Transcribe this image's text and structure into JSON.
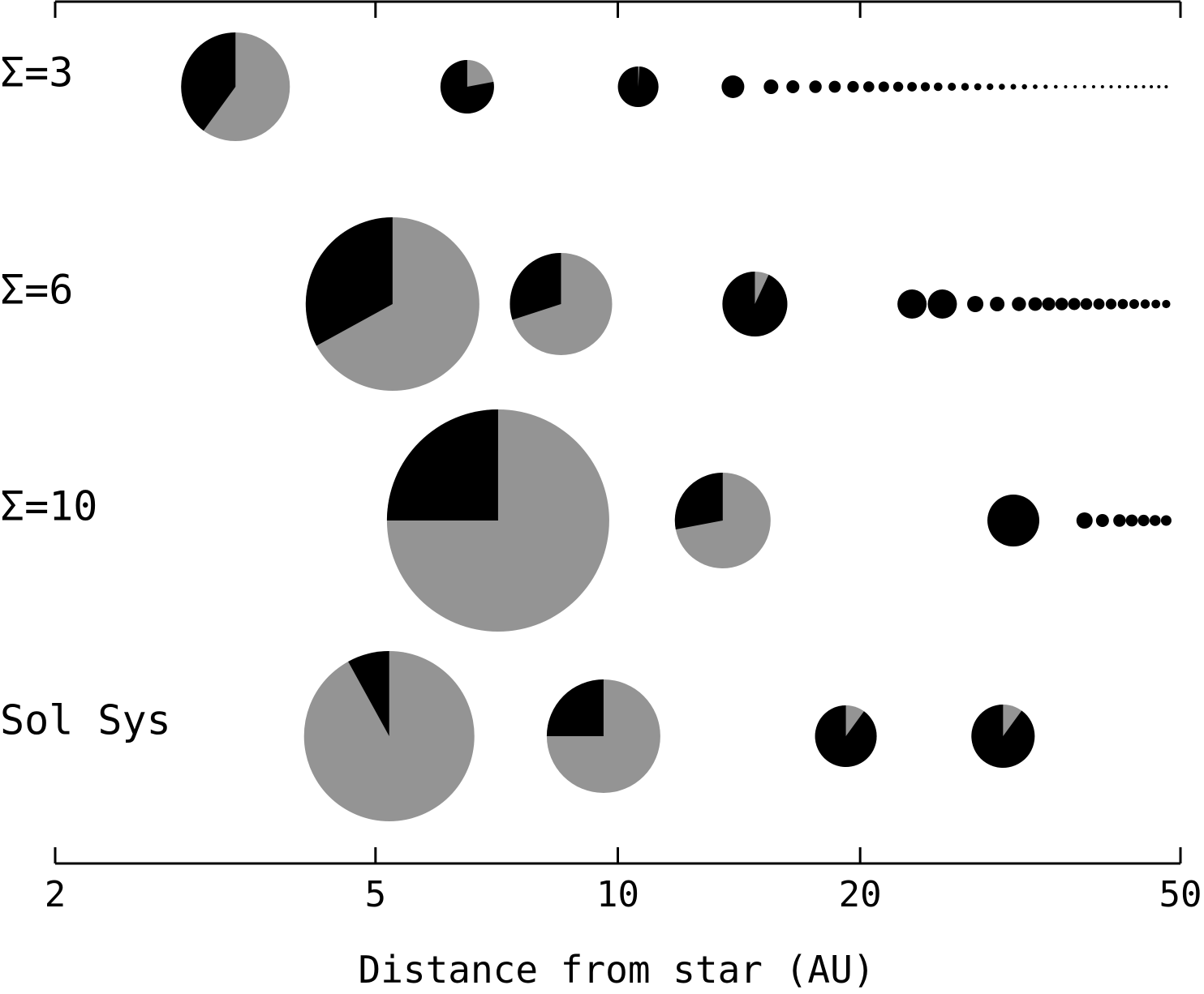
{
  "chart_data": {
    "type": "scatter",
    "xlabel": "Distance from star (AU)",
    "xscale": "log",
    "xlim": [
      2,
      50
    ],
    "x_ticks": [
      2,
      5,
      10,
      20,
      50
    ],
    "x_tick_labels": [
      "2",
      "5",
      "10",
      "20",
      "50"
    ],
    "grid": false,
    "colors": {
      "gas": "#949494",
      "solid": "#000000"
    },
    "rows": [
      {
        "label": "Σ=3",
        "bodies": [
          {
            "a": 3.35,
            "gas_fraction": 0.6
          },
          {
            "a": 6.5,
            "gas_fraction": 0.22
          },
          {
            "a": 10.6,
            "gas_fraction": 0.01
          },
          {
            "a": 13.9,
            "gas_fraction": 0.0
          },
          {
            "a": 15.5,
            "gas_fraction": 0.0
          },
          {
            "a": 16.5,
            "gas_fraction": 0.0
          },
          {
            "a": 17.6,
            "gas_fraction": 0.0
          },
          {
            "a": 18.6,
            "gas_fraction": 0.0
          },
          {
            "a": 19.6,
            "gas_fraction": 0.0
          },
          {
            "a": 20.5,
            "gas_fraction": 0.0
          },
          {
            "a": 21.4,
            "gas_fraction": 0.0
          },
          {
            "a": 22.3,
            "gas_fraction": 0.0
          },
          {
            "a": 23.2,
            "gas_fraction": 0.0
          },
          {
            "a": 24.1,
            "gas_fraction": 0.0
          },
          {
            "a": 25.0,
            "gas_fraction": 0.0
          },
          {
            "a": 26.0,
            "gas_fraction": 0.0
          },
          {
            "a": 27.0,
            "gas_fraction": 0.0
          },
          {
            "a": 28.0,
            "gas_fraction": 0.0
          },
          {
            "a": 29.0,
            "gas_fraction": 0.0
          },
          {
            "a": 30.0,
            "gas_fraction": 0.0
          },
          {
            "a": 31.0,
            "gas_fraction": 0.0
          },
          {
            "a": 32.0,
            "gas_fraction": 0.0
          },
          {
            "a": 33.0,
            "gas_fraction": 0.0
          },
          {
            "a": 34.0,
            "gas_fraction": 0.0
          },
          {
            "a": 35.0,
            "gas_fraction": 0.0
          },
          {
            "a": 36.0,
            "gas_fraction": 0.0
          },
          {
            "a": 37.0,
            "gas_fraction": 0.0
          },
          {
            "a": 38.0,
            "gas_fraction": 0.0
          },
          {
            "a": 39.0,
            "gas_fraction": 0.0
          },
          {
            "a": 40.0,
            "gas_fraction": 0.0
          },
          {
            "a": 41.0,
            "gas_fraction": 0.0
          },
          {
            "a": 42.0,
            "gas_fraction": 0.0
          },
          {
            "a": 43.0,
            "gas_fraction": 0.0
          },
          {
            "a": 44.0,
            "gas_fraction": 0.0
          },
          {
            "a": 45.0,
            "gas_fraction": 0.0
          },
          {
            "a": 46.0,
            "gas_fraction": 0.0
          },
          {
            "a": 47.0,
            "gas_fraction": 0.0
          },
          {
            "a": 48.0,
            "gas_fraction": 0.0
          }
        ]
      },
      {
        "label": "Σ=6",
        "bodies": [
          {
            "a": 5.25,
            "gas_fraction": 0.67
          },
          {
            "a": 8.5,
            "gas_fraction": 0.7
          },
          {
            "a": 14.8,
            "gas_fraction": 0.07
          },
          {
            "a": 23.2,
            "gas_fraction": 0.0
          },
          {
            "a": 25.3,
            "gas_fraction": 0.0
          },
          {
            "a": 27.8,
            "gas_fraction": 0.0
          },
          {
            "a": 29.6,
            "gas_fraction": 0.0
          },
          {
            "a": 31.5,
            "gas_fraction": 0.0
          },
          {
            "a": 33.0,
            "gas_fraction": 0.0
          },
          {
            "a": 34.3,
            "gas_fraction": 0.0
          },
          {
            "a": 35.6,
            "gas_fraction": 0.0
          },
          {
            "a": 36.9,
            "gas_fraction": 0.0
          },
          {
            "a": 38.2,
            "gas_fraction": 0.0
          },
          {
            "a": 39.6,
            "gas_fraction": 0.0
          },
          {
            "a": 41.0,
            "gas_fraction": 0.0
          },
          {
            "a": 42.4,
            "gas_fraction": 0.0
          },
          {
            "a": 43.8,
            "gas_fraction": 0.0
          },
          {
            "a": 45.2,
            "gas_fraction": 0.0
          },
          {
            "a": 46.6,
            "gas_fraction": 0.0
          },
          {
            "a": 48.0,
            "gas_fraction": 0.0
          }
        ]
      },
      {
        "label": "Σ=10",
        "bodies": [
          {
            "a": 7.1,
            "gas_fraction": 0.75
          },
          {
            "a": 13.5,
            "gas_fraction": 0.72
          },
          {
            "a": 31.0,
            "gas_fraction": 0.0
          },
          {
            "a": 38.0,
            "gas_fraction": 0.0
          },
          {
            "a": 40.0,
            "gas_fraction": 0.0
          },
          {
            "a": 42.0,
            "gas_fraction": 0.0
          },
          {
            "a": 43.5,
            "gas_fraction": 0.0
          },
          {
            "a": 45.0,
            "gas_fraction": 0.0
          },
          {
            "a": 46.5,
            "gas_fraction": 0.0
          },
          {
            "a": 48.0,
            "gas_fraction": 0.0
          }
        ]
      },
      {
        "label": "Sol Sys",
        "bodies": [
          {
            "a": 5.2,
            "gas_fraction": 0.92
          },
          {
            "a": 9.6,
            "gas_fraction": 0.75
          },
          {
            "a": 19.2,
            "gas_fraction": 0.1
          },
          {
            "a": 30.1,
            "gas_fraction": 0.1
          }
        ]
      }
    ]
  }
}
